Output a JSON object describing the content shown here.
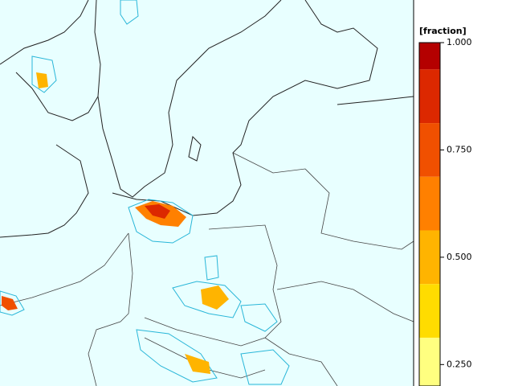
{
  "colorbar": {
    "label": "[fraction]",
    "lim": [
      0.2,
      1.0
    ],
    "bounds": [
      1.0,
      0.9375,
      0.8125,
      0.6875,
      0.5625,
      0.4375,
      0.3125,
      0.2
    ],
    "colors": [
      "#b40000",
      "#dc2800",
      "#f05000",
      "#ff8000",
      "#ffb400",
      "#ffdc00",
      "#ffff80"
    ],
    "ticks": [
      {
        "value": 1.0,
        "label": "1.000"
      },
      {
        "value": 0.75,
        "label": "0.750"
      },
      {
        "value": 0.5,
        "label": "0.500"
      },
      {
        "value": 0.25,
        "label": "0.250"
      }
    ]
  }
}
